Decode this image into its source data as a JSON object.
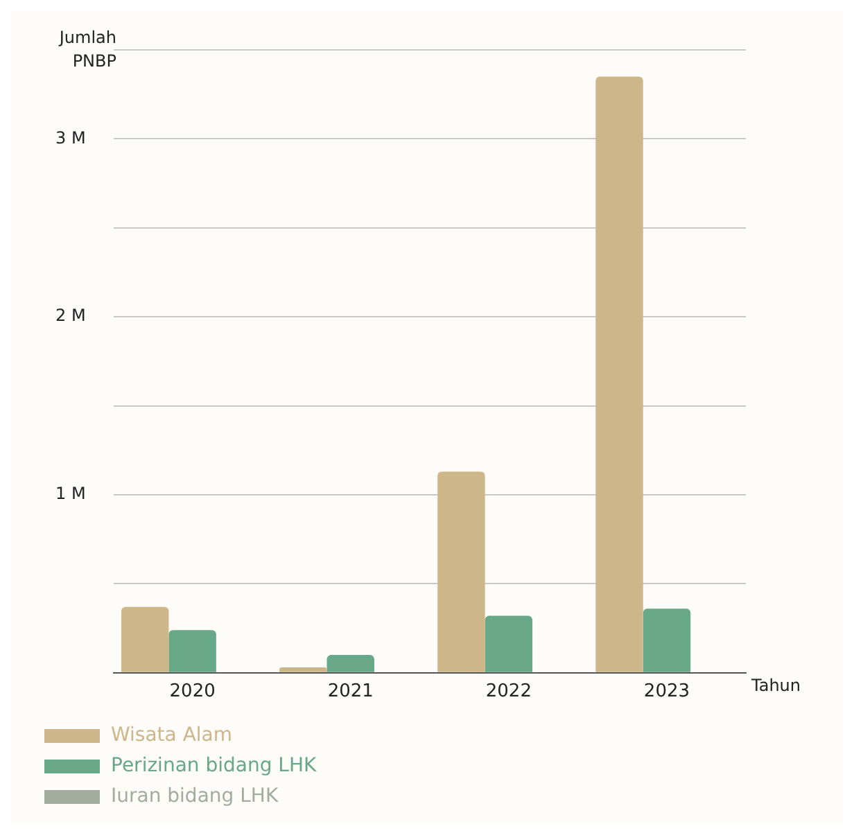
{
  "chart_data": {
    "type": "bar",
    "xlabel": "Tahun",
    "ylabel": "Jumlah PNBP",
    "categories": [
      "2020",
      "2021",
      "2022",
      "2023"
    ],
    "series": [
      {
        "name": "Wisata Alam",
        "color": "#cdb68a",
        "values": [
          0.37,
          0.03,
          1.13,
          3.35
        ]
      },
      {
        "name": "Perizinan bidang LHK",
        "color": "#68a787",
        "values": [
          0.24,
          0.1,
          0.32,
          0.36
        ]
      },
      {
        "name": "Iuran bidang LHK",
        "color": "#a3ad9f",
        "values": [
          null,
          null,
          null,
          null
        ]
      }
    ],
    "ylim": [
      0,
      3.5
    ],
    "yticks": [
      {
        "value": 0,
        "label": null
      },
      {
        "value": 0.5,
        "label": null
      },
      {
        "value": 1,
        "label": "1 M"
      },
      {
        "value": 1.5,
        "label": null
      },
      {
        "value": 2,
        "label": "2 M"
      },
      {
        "value": 2.5,
        "label": null
      },
      {
        "value": 3,
        "label": "3 M"
      },
      {
        "value": 3.5,
        "label": null
      }
    ],
    "grid": "y",
    "legend": "bottom"
  }
}
